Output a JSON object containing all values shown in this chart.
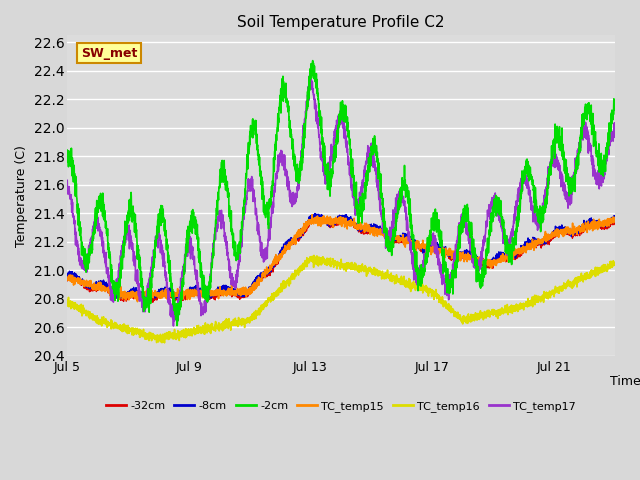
{
  "title": "Soil Temperature Profile C2",
  "xlabel": "Time",
  "ylabel": "Temperature (C)",
  "ylim": [
    20.4,
    22.65
  ],
  "xlim": [
    0,
    18.0
  ],
  "xtick_positions": [
    0,
    4,
    8,
    12,
    16
  ],
  "xtick_labels": [
    "Jul 5",
    "Jul 9",
    "Jul 13",
    "Jul 17",
    "Jul 21"
  ],
  "bg_color": "#dcdcdc",
  "grid_color": "#ffffff",
  "fig_bg": "#d8d8d8",
  "series_colors": {
    "-32cm": "#dd0000",
    "-8cm": "#0000cc",
    "-2cm": "#00dd00",
    "TC_temp15": "#ff8800",
    "TC_temp16": "#dddd00",
    "TC_temp17": "#9933cc"
  },
  "legend_label": "SW_met",
  "legend_box_color": "#ffff99",
  "legend_box_edge": "#cc8800",
  "legend_text_color": "#880000"
}
